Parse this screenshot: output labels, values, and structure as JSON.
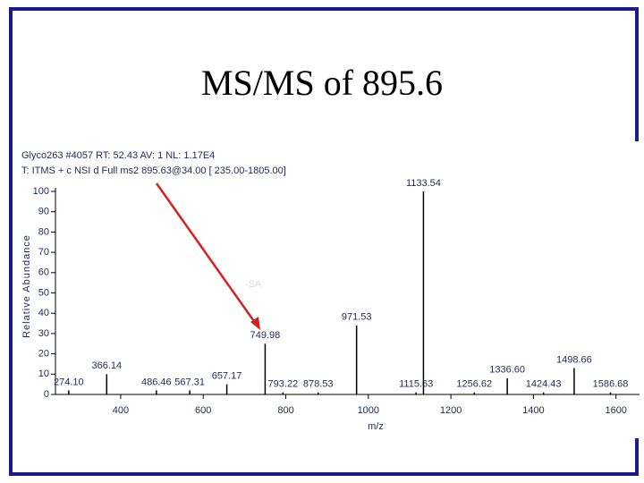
{
  "title": "MS/MS of 895.6",
  "chart_data": {
    "type": "stick",
    "header": [
      "Glyco263 #4057  RT: 52.43  AV: 1  NL: 1.17E4",
      "T: ITMS + c NSI d Full ms2 895.63@34.00 [ 235.00-1805.00]"
    ],
    "x_label": "m/z",
    "y_label": "Relative Abundance",
    "annotation": "-SA",
    "x": [
      274.1,
      366.14,
      486.46,
      567.31,
      657.17,
      749.98,
      793.22,
      878.53,
      971.53,
      1115.63,
      1133.54,
      1256.62,
      1336.6,
      1424.43,
      1498.66,
      1586.68
    ],
    "x_labels": [
      "274.10",
      "366.14",
      "486.46",
      "567.31",
      "657.17",
      "749.98",
      "793.22",
      "878.53",
      "971.53",
      "1115.63",
      "1133.54",
      "1256.62",
      "1336.60",
      "1424.43",
      "1498.66",
      "1586.68"
    ],
    "values": [
      2,
      10,
      2,
      2,
      5,
      25,
      1,
      1,
      34,
      1,
      100,
      1,
      8,
      1,
      13,
      1
    ],
    "color": "#000000",
    "xlim": [
      242,
      1657
    ],
    "xticks": [
      400,
      600,
      800,
      1000,
      1200,
      1400,
      1600
    ],
    "ylim": [
      0,
      100
    ],
    "yticks": [
      0,
      10,
      20,
      30,
      40,
      50,
      60,
      70,
      80,
      90,
      100
    ]
  }
}
